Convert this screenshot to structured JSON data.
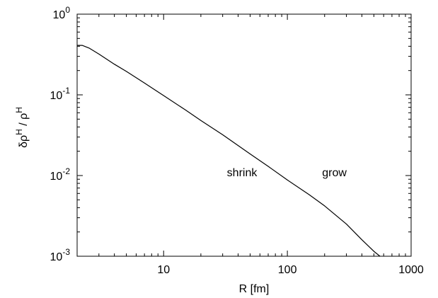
{
  "chart_data": {
    "type": "line",
    "title": "",
    "xlabel": "R [fm]",
    "ylabel_main": "δρ",
    "ylabel_sup1": "H",
    "ylabel_slash": " / ρ",
    "ylabel_sup2": "H",
    "x_scale": "log",
    "y_scale": "log",
    "xlim": [
      2,
      1000
    ],
    "ylim": [
      0.001,
      1
    ],
    "grid": false,
    "legend": "none",
    "x_ticks": [
      {
        "value": 10,
        "label": "10"
      },
      {
        "value": 100,
        "label": "100"
      },
      {
        "value": 1000,
        "label": "1000"
      }
    ],
    "y_ticks": [
      {
        "value": 0.001,
        "base": "10",
        "exp": "-3"
      },
      {
        "value": 0.01,
        "base": "10",
        "exp": "-2"
      },
      {
        "value": 0.1,
        "base": "10",
        "exp": "-1"
      },
      {
        "value": 1,
        "base": "10",
        "exp": "0"
      }
    ],
    "annotations": [
      {
        "text": "shrink",
        "x": 43,
        "y": 0.0098
      },
      {
        "text": "grow",
        "x": 240,
        "y": 0.0098
      }
    ],
    "series": [
      {
        "color": "#000000",
        "x": [
          2,
          2.2,
          2.5,
          3,
          4,
          5,
          7,
          10,
          15,
          20,
          30,
          50,
          70,
          100,
          150,
          200,
          300,
          400,
          500,
          560
        ],
        "y": [
          0.41,
          0.41,
          0.38,
          0.32,
          0.24,
          0.195,
          0.14,
          0.098,
          0.065,
          0.048,
          0.032,
          0.0185,
          0.013,
          0.0088,
          0.0058,
          0.0042,
          0.0025,
          0.0016,
          0.00115,
          0.001
        ]
      }
    ]
  }
}
